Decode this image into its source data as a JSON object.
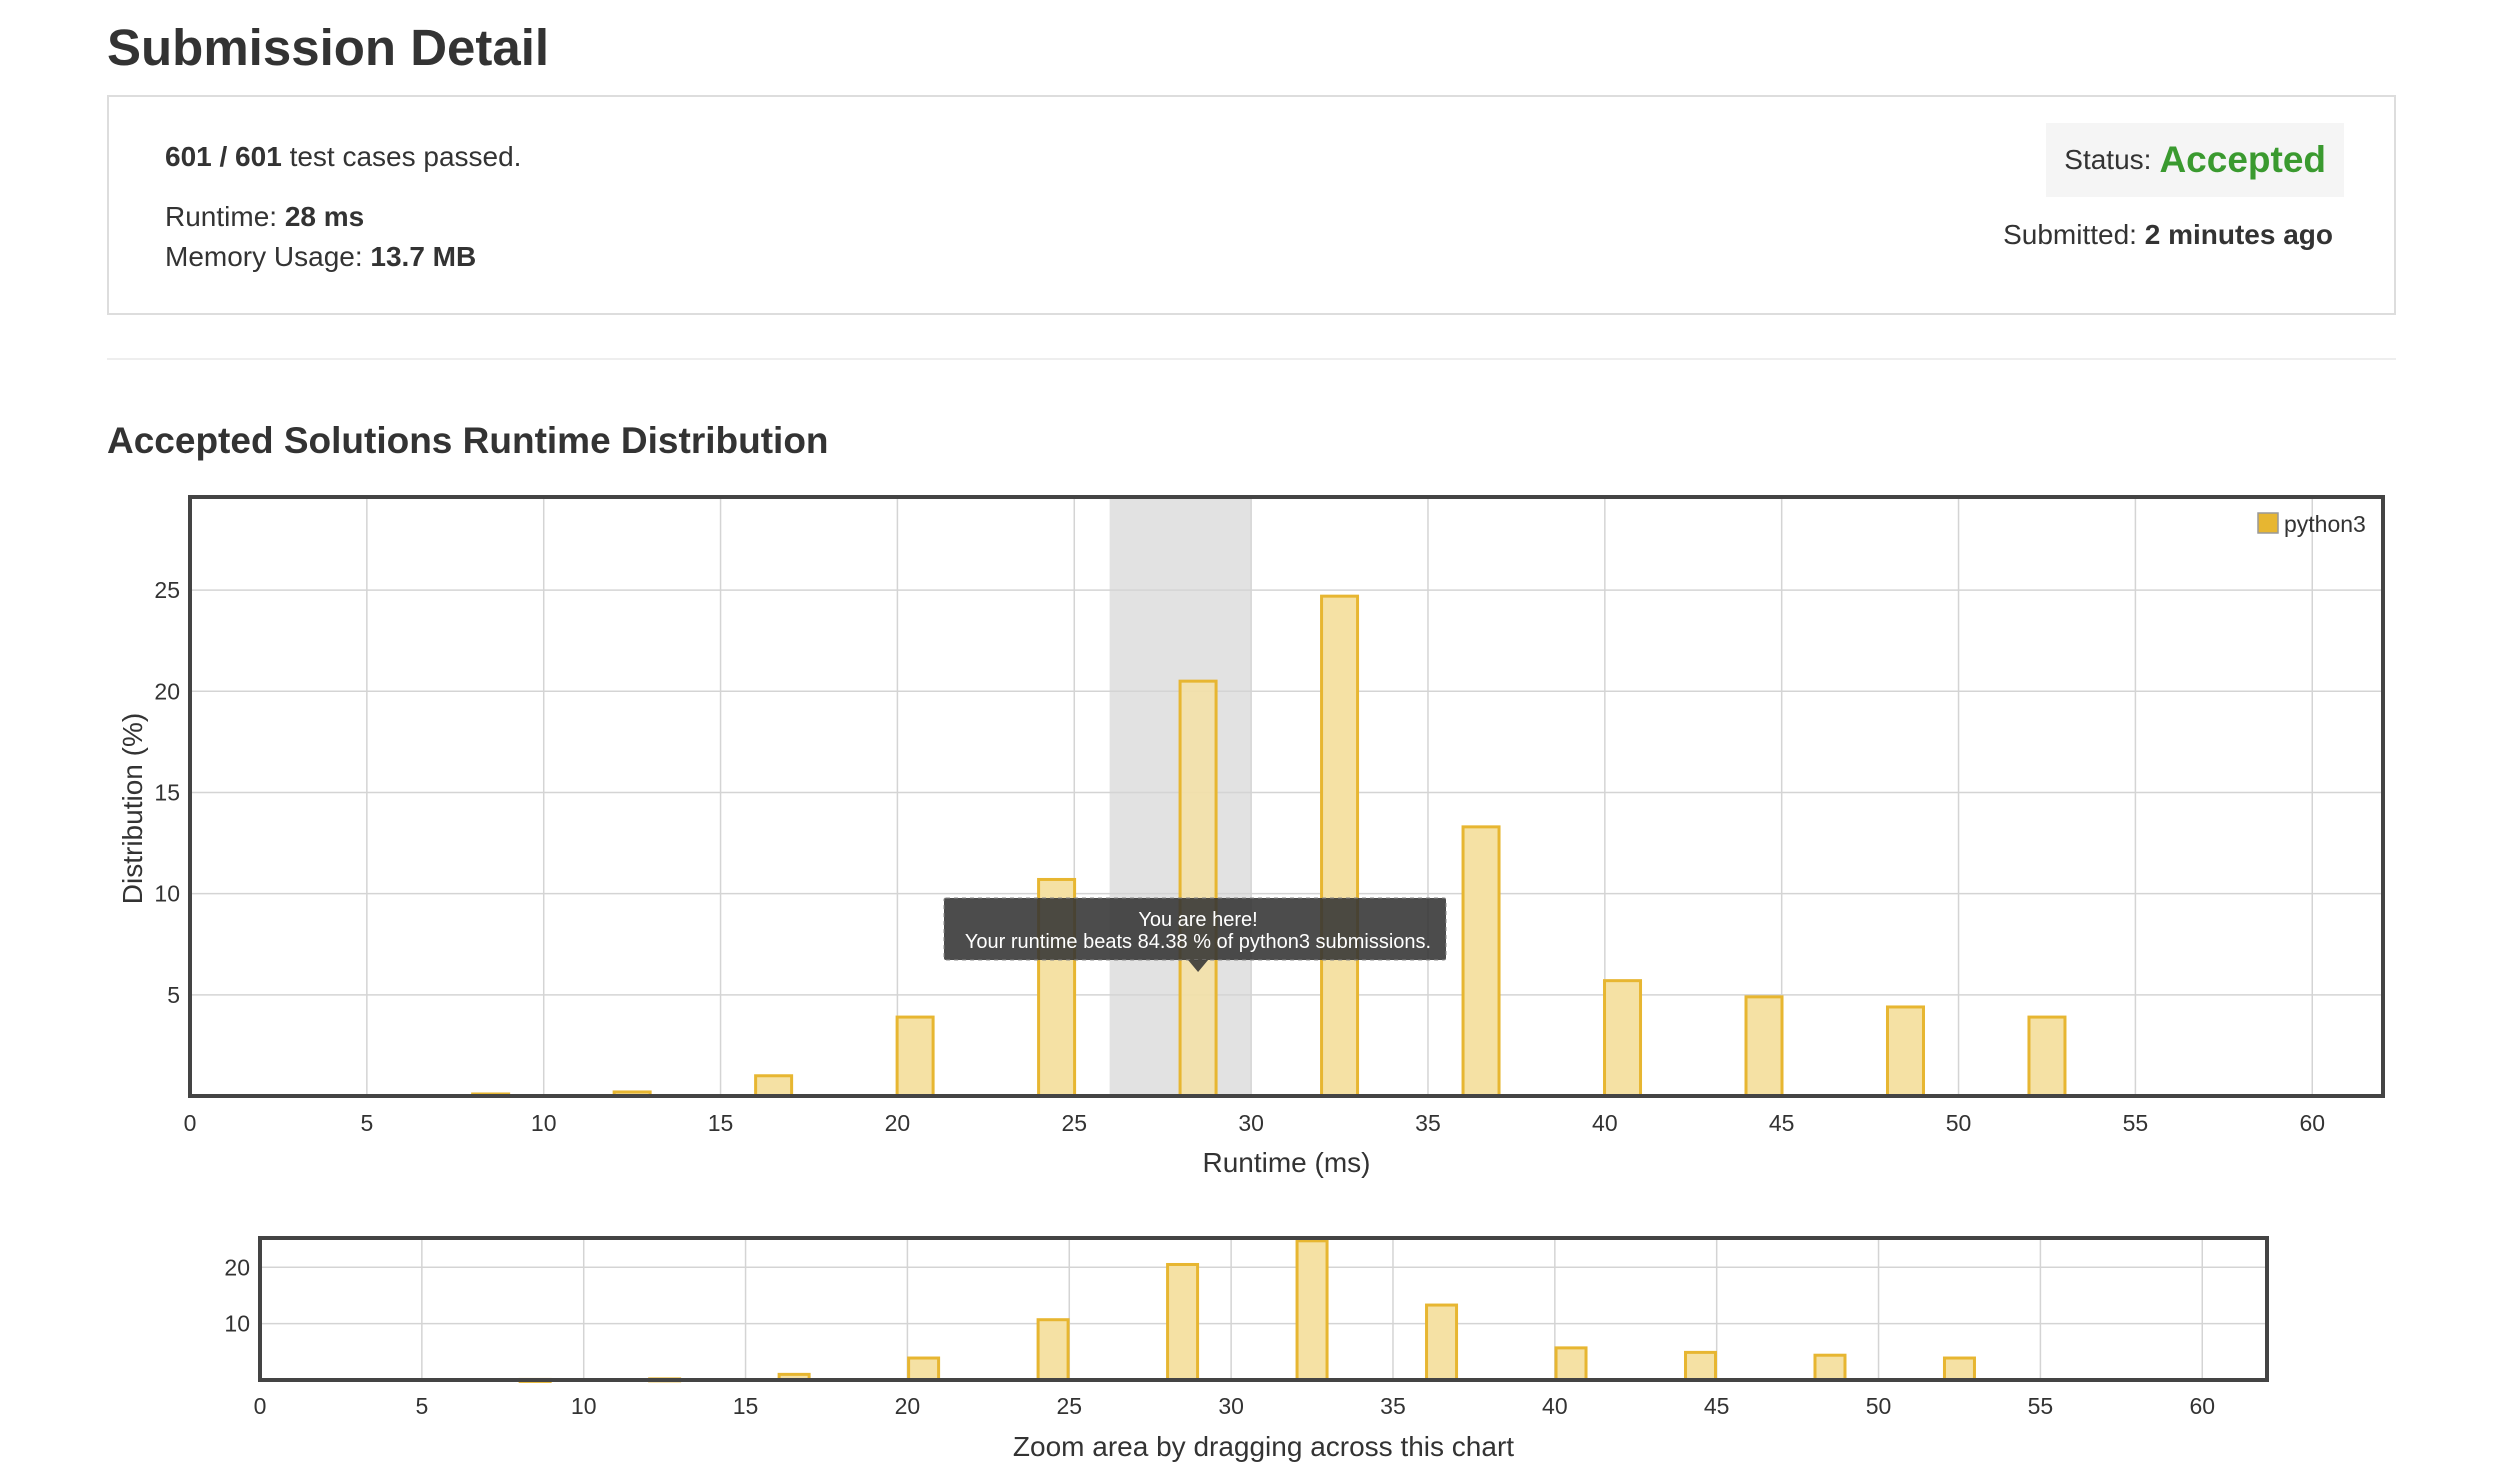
{
  "page": {
    "title": "Submission Detail",
    "section_title": "Accepted Solutions Runtime Distribution"
  },
  "summary": {
    "cases_count": "601 / 601",
    "cases_text": "test cases passed.",
    "runtime_label": "Runtime:",
    "runtime_value": "28 ms",
    "memory_label": "Memory Usage:",
    "memory_value": "13.7 MB",
    "status_label": "Status:",
    "status_value": "Accepted",
    "status_color": "#3a9a2f",
    "submitted_label": "Submitted:",
    "submitted_value": "2 minutes ago"
  },
  "tooltip": {
    "line1": "You are here!",
    "line2": "Your runtime beats 84.38 % of python3 submissions."
  },
  "zoom_hint": "Zoom area by dragging across this chart",
  "chart_data": {
    "type": "bar",
    "xlabel": "Runtime (ms)",
    "ylabel": "Distribution (%)",
    "xlim": [
      0,
      62
    ],
    "ylim": [
      0,
      29.6
    ],
    "xticks": [
      0,
      5,
      10,
      15,
      20,
      25,
      30,
      35,
      40,
      45,
      50,
      55,
      60
    ],
    "yticks": [
      5,
      10,
      15,
      20,
      25
    ],
    "grid": true,
    "legend_position": "top-right",
    "highlight_x_range": [
      26,
      30
    ],
    "series": [
      {
        "name": "python3",
        "color": "#e7b631",
        "fill": "#f5e1a4",
        "x": [
          8.5,
          12.5,
          16.5,
          20.5,
          24.5,
          28.5,
          32.5,
          36.5,
          40.5,
          44.5,
          48.5,
          52.5
        ],
        "values": [
          0.1,
          0.2,
          1.0,
          3.9,
          10.7,
          20.5,
          24.7,
          13.3,
          5.7,
          4.9,
          4.4,
          3.9
        ]
      }
    ],
    "overview": {
      "xlim": [
        0,
        62
      ],
      "ylim": [
        0,
        25.2
      ],
      "yticks": [
        10,
        20
      ],
      "xticks": [
        0,
        5,
        10,
        15,
        20,
        25,
        30,
        35,
        40,
        45,
        50,
        55,
        60
      ]
    }
  }
}
